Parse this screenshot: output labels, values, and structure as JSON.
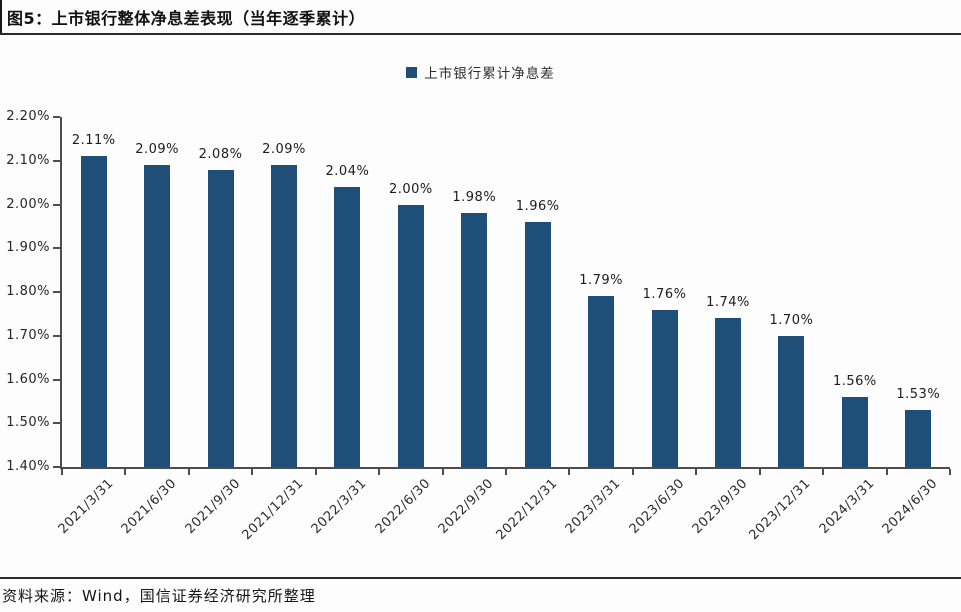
{
  "figure": {
    "caption": "图5：上市银行整体净息差表现（当年逐季累计）",
    "source": "资料来源：Wind，国信证券经济研究所整理"
  },
  "legend": {
    "label": "上市银行累计净息差",
    "marker_color": "#1f4e79"
  },
  "chart_data": {
    "type": "bar",
    "title": "上市银行整体净息差表现（当年逐季累计）",
    "series_name": "上市银行累计净息差",
    "categories": [
      "2021/3/31",
      "2021/6/30",
      "2021/9/30",
      "2021/12/31",
      "2022/3/31",
      "2022/6/30",
      "2022/9/30",
      "2022/12/31",
      "2023/3/31",
      "2023/6/30",
      "2023/9/30",
      "2023/12/31",
      "2024/3/31",
      "2024/6/30"
    ],
    "values": [
      2.11,
      2.09,
      2.08,
      2.09,
      2.04,
      2.0,
      1.98,
      1.96,
      1.79,
      1.76,
      1.74,
      1.7,
      1.56,
      1.53
    ],
    "value_labels": [
      "2.11%",
      "2.09%",
      "2.08%",
      "2.09%",
      "2.04%",
      "2.00%",
      "1.98%",
      "1.96%",
      "1.79%",
      "1.76%",
      "1.74%",
      "1.70%",
      "1.56%",
      "1.53%"
    ],
    "ylim": [
      1.4,
      2.2
    ],
    "ytick_labels": [
      "2.20%",
      "2.10%",
      "2.00%",
      "1.90%",
      "1.80%",
      "1.70%",
      "1.60%",
      "1.50%",
      "1.40%"
    ],
    "bar_color": "#1f4e79",
    "grid": false,
    "legend_position": "top-center",
    "xlabel": "",
    "ylabel": ""
  }
}
